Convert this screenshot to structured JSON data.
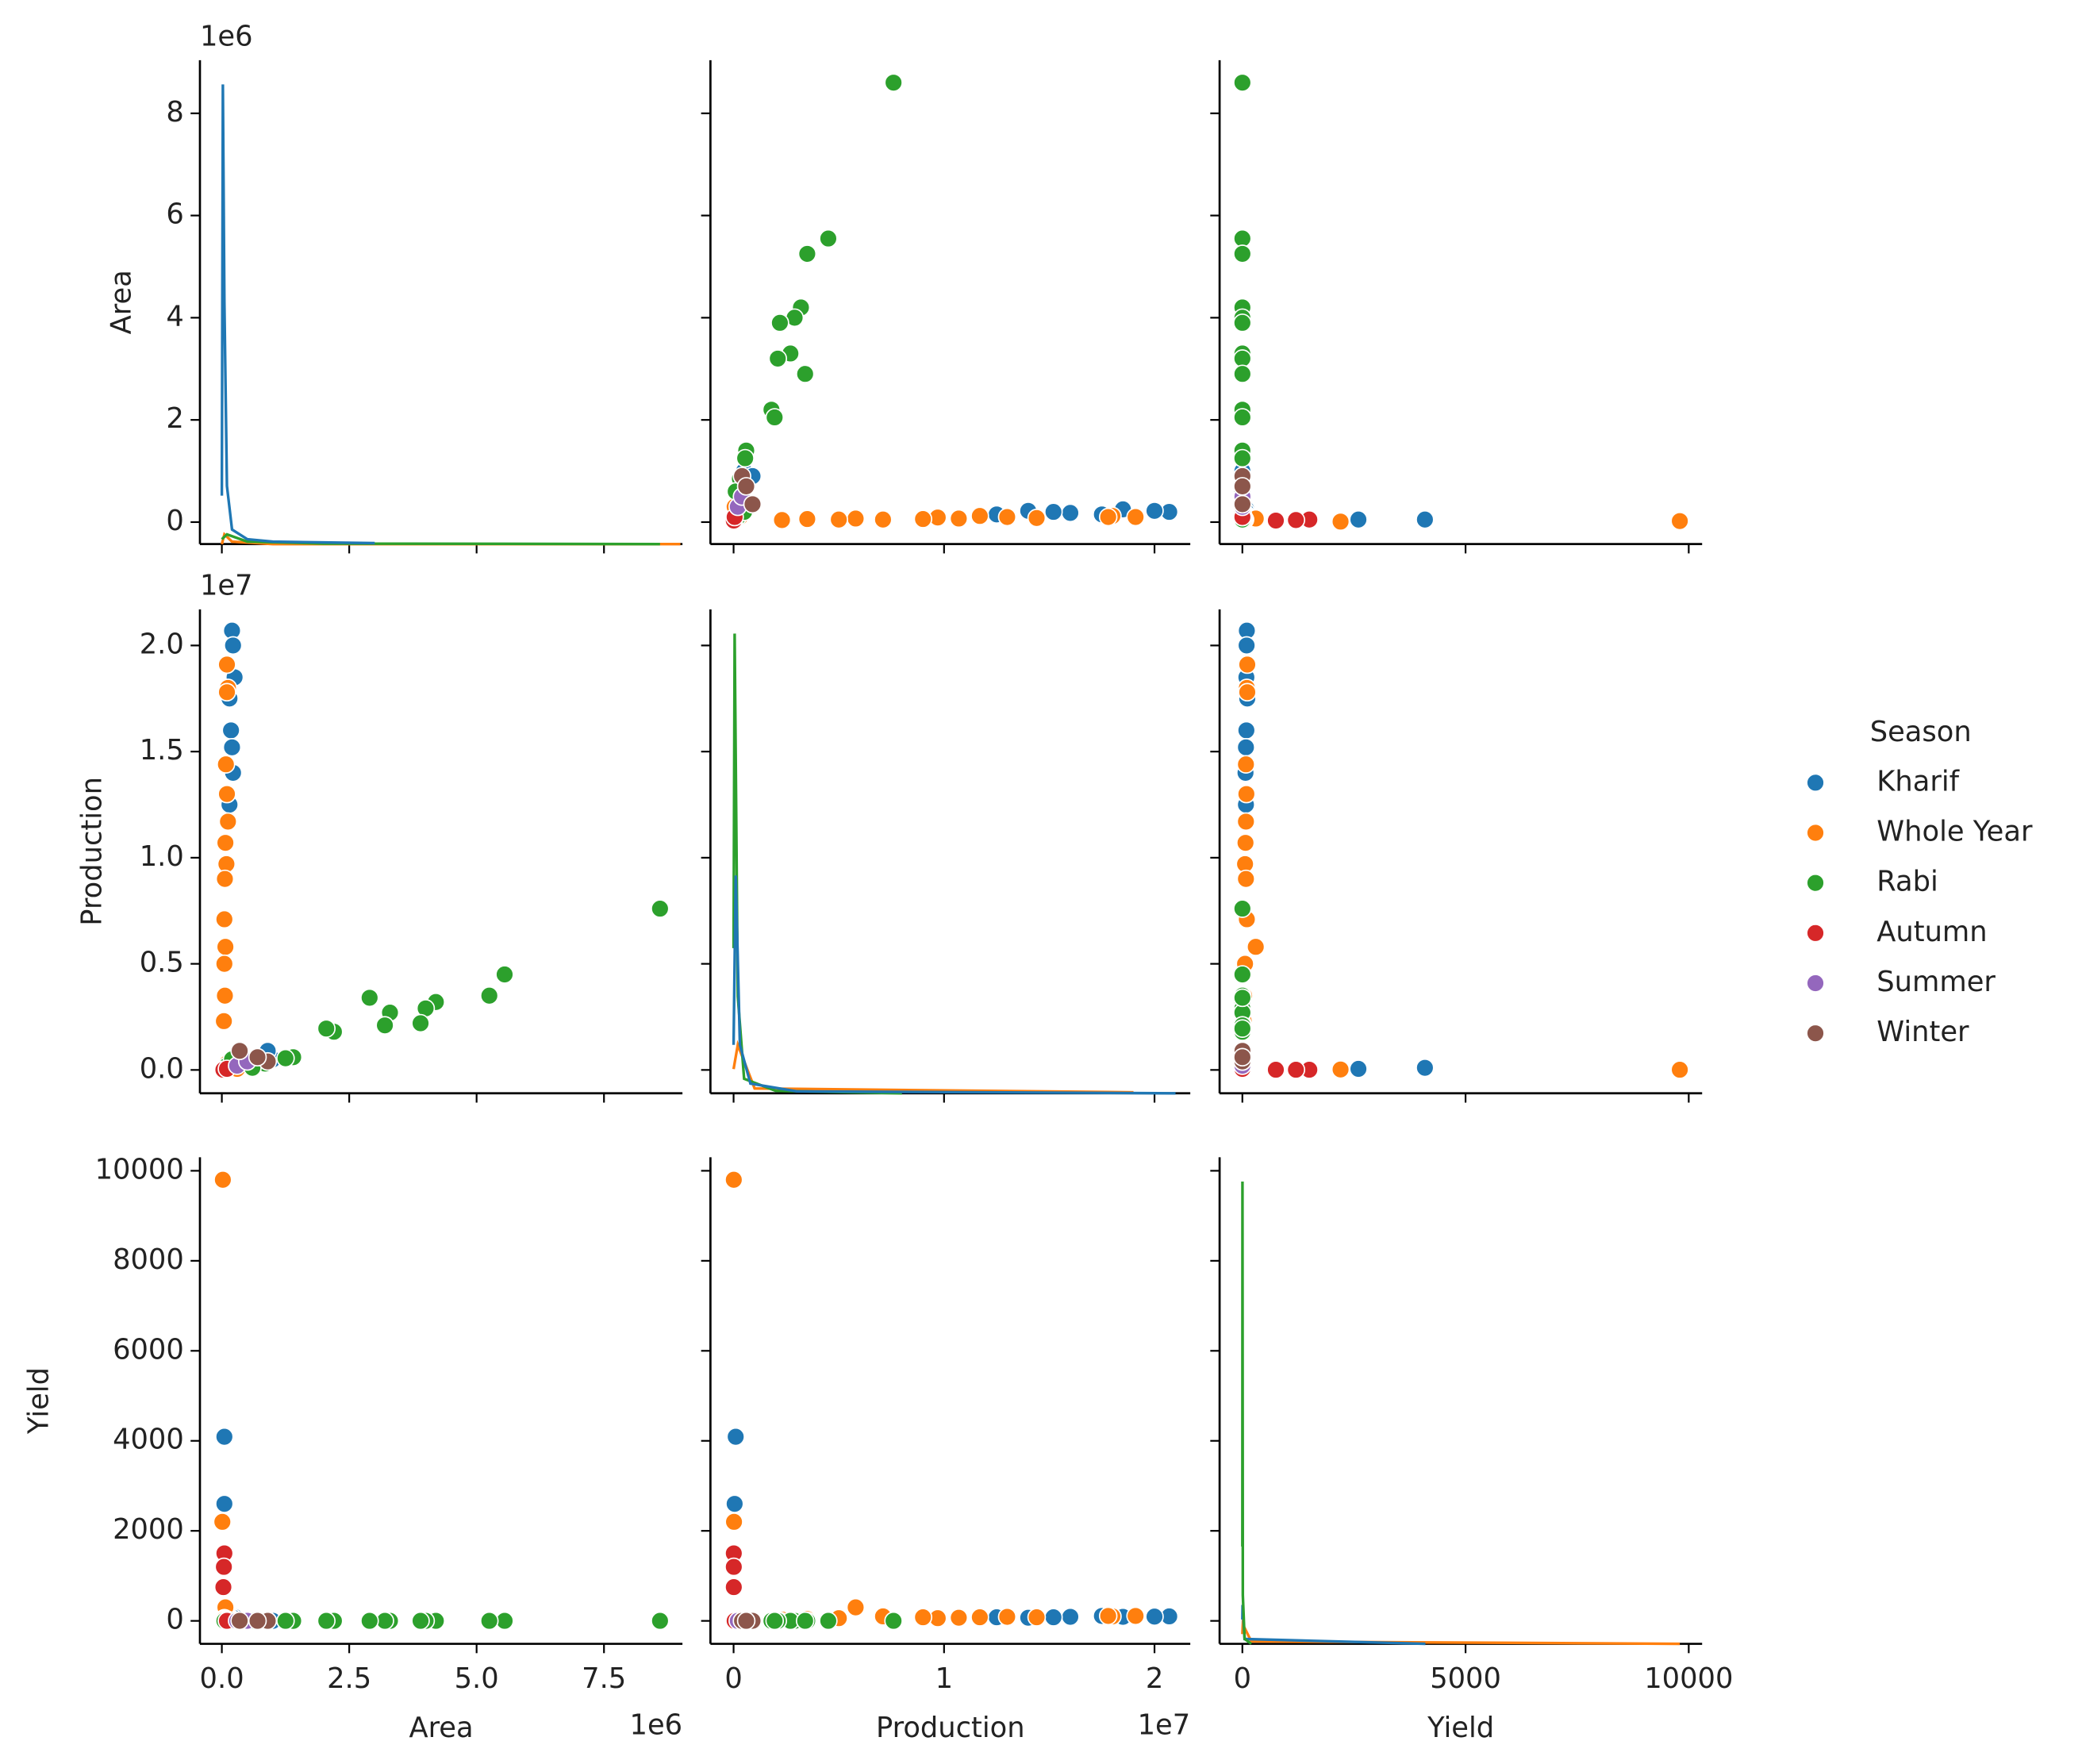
{
  "chart_data": {
    "type": "pairplot",
    "legend_title": "Season",
    "legend_loc": "center right",
    "variables": [
      {
        "label": "Area",
        "lim": [
          -430000,
          9040000
        ],
        "offset_label": "1e6",
        "xticks": [
          {
            "value": 0,
            "label": "0.0"
          },
          {
            "value": 2500000,
            "label": "2.5"
          },
          {
            "value": 5000000,
            "label": "5.0"
          },
          {
            "value": 7500000,
            "label": "7.5"
          }
        ],
        "yticks": [
          {
            "value": 0,
            "label": "0"
          },
          {
            "value": 2000000,
            "label": "2"
          },
          {
            "value": 4000000,
            "label": "4"
          },
          {
            "value": 6000000,
            "label": "6"
          },
          {
            "value": 8000000,
            "label": "8"
          }
        ]
      },
      {
        "label": "Production",
        "lim": [
          -1100000,
          21700000
        ],
        "offset_label": "1e7",
        "xticks": [
          {
            "value": 0,
            "label": "0"
          },
          {
            "value": 10000000,
            "label": "1"
          },
          {
            "value": 20000000,
            "label": "2"
          }
        ],
        "yticks": [
          {
            "value": 0,
            "label": "0.0"
          },
          {
            "value": 5000000,
            "label": "0.5"
          },
          {
            "value": 10000000,
            "label": "1.0"
          },
          {
            "value": 15000000,
            "label": "1.5"
          },
          {
            "value": 20000000,
            "label": "2.0"
          }
        ]
      },
      {
        "label": "Yield",
        "lim": [
          -510,
          10300
        ],
        "xticks": [
          0,
          5000,
          10000
        ],
        "yticks": [
          0,
          2000,
          4000,
          6000,
          8000,
          10000
        ]
      }
    ],
    "series": [
      {
        "name": "Kharif",
        "color": "#1f77b4",
        "values": [
          [
            200000,
            220000,
            250000,
            150000,
            180000,
            200000,
            220000,
            150000,
            1000000,
            900000,
            800000,
            50000,
            50000,
            500000
          ],
          [
            20700000,
            20000000,
            18500000,
            17500000,
            16000000,
            15200000,
            14000000,
            12500000,
            500000,
            900000,
            300000,
            100000,
            50000,
            200000
          ],
          [
            100,
            95,
            90,
            110,
            90,
            80,
            70,
            80,
            0.5,
            1,
            0.4,
            4090,
            2600,
            1.5
          ]
        ]
      },
      {
        "name": "Whole Year",
        "color": "#ff7f0e",
        "values": [
          [
            100000,
            120000,
            100000,
            80000,
            100000,
            120000,
            70000,
            90000,
            60000,
            50000,
            70000,
            50000,
            60000,
            40000,
            20000,
            10000,
            100000,
            200000,
            300000
          ],
          [
            19100000,
            18000000,
            17800000,
            14400000,
            13000000,
            11700000,
            10700000,
            9700000,
            9000000,
            7100000,
            5800000,
            5000000,
            3500000,
            2300000,
            10000,
            20000,
            300000,
            100000,
            50000
          ],
          [
            110,
            100,
            110,
            80,
            90,
            80,
            70,
            60,
            80,
            100,
            300,
            60,
            40,
            30,
            9800,
            2200,
            30,
            3,
            1
          ]
        ]
      },
      {
        "name": "Rabi",
        "color": "#2ca02c",
        "values": [
          [
            8600000,
            5550000,
            5250000,
            4200000,
            4000000,
            3900000,
            3300000,
            3200000,
            2900000,
            2200000,
            2050000,
            1400000,
            1250000,
            850000,
            400000,
            600000,
            50000,
            100000,
            200000
          ],
          [
            7600000,
            4500000,
            3500000,
            3200000,
            2900000,
            2200000,
            2700000,
            2100000,
            3400000,
            1800000,
            1950000,
            600000,
            550000,
            300000,
            400000,
            100000,
            50000,
            200000,
            500000
          ],
          [
            0.9,
            0.8,
            0.7,
            0.8,
            0.7,
            0.6,
            0.8,
            0.7,
            1.2,
            0.8,
            0.9,
            0.4,
            0.5,
            0.4,
            1,
            0.2,
            1,
            2,
            2.5
          ]
        ]
      },
      {
        "name": "Autumn",
        "color": "#d62728",
        "values": [
          [
            50000,
            40000,
            30000,
            100000
          ],
          [
            10000,
            10000,
            10000,
            50000
          ],
          [
            1500,
            1200,
            750,
            0.5
          ]
        ]
      },
      {
        "name": "Summer",
        "color": "#9467bd",
        "values": [
          [
            300000,
            500000
          ],
          [
            200000,
            400000
          ],
          [
            1,
            1.5
          ]
        ]
      },
      {
        "name": "Winter",
        "color": "#8c564b",
        "values": [
          [
            900000,
            350000,
            700000
          ],
          [
            400000,
            900000,
            600000
          ],
          [
            1.2,
            2,
            1
          ]
        ]
      }
    ],
    "kde": [
      {
        "ylim": [
          0,
          1
        ],
        "curves": [
          {
            "color": "#ff7f0e",
            "x": [
              0,
              50000,
              200000,
              1000000,
              9000000
            ],
            "y": [
              0,
              0.02,
              0.005,
              0,
              0
            ]
          },
          {
            "color": "#2ca02c",
            "x": [
              0,
              100000,
              500000,
              2000000,
              8600000
            ],
            "y": [
              0.01,
              0.02,
              0.005,
              0.001,
              0
            ]
          },
          {
            "color": "#1f77b4",
            "x": [
              0,
              20000,
              50000,
              100000,
              200000,
              500000,
              1000000,
              3000000
            ],
            "y": [
              0.1,
              0.95,
              0.5,
              0.12,
              0.03,
              0.01,
              0.005,
              0.002
            ]
          }
        ]
      },
      {
        "ylim": [
          0,
          1
        ],
        "curves": [
          {
            "color": "#ff7f0e",
            "x": [
              0,
              200000,
              1000000,
              19000000
            ],
            "y": [
              0.05,
              0.1,
              0.01,
              0.002
            ]
          },
          {
            "color": "#2ca02c",
            "x": [
              0,
              50000,
              200000,
              500000,
              2000000,
              8000000
            ],
            "y": [
              0.3,
              0.95,
              0.2,
              0.03,
              0.005,
              0
            ]
          },
          {
            "color": "#1f77b4",
            "x": [
              0,
              100000,
              300000,
              800000,
              3000000,
              21000000
            ],
            "y": [
              0.1,
              0.45,
              0.1,
              0.02,
              0.004,
              0
            ]
          }
        ]
      },
      {
        "ylim": [
          0,
          1
        ],
        "curves": [
          {
            "color": "#ff7f0e",
            "x": [
              0,
              10,
              200,
              9800
            ],
            "y": [
              0.02,
              0.04,
              0.005,
              0
            ]
          },
          {
            "color": "#1f77b4",
            "x": [
              0,
              5,
              50,
              4100
            ],
            "y": [
              0.05,
              0.08,
              0.01,
              0
            ]
          },
          {
            "color": "#2ca02c",
            "x": [
              0,
              2,
              10,
              50,
              200
            ],
            "y": [
              0.2,
              0.95,
              0.1,
              0.01,
              0
            ]
          }
        ]
      }
    ]
  }
}
